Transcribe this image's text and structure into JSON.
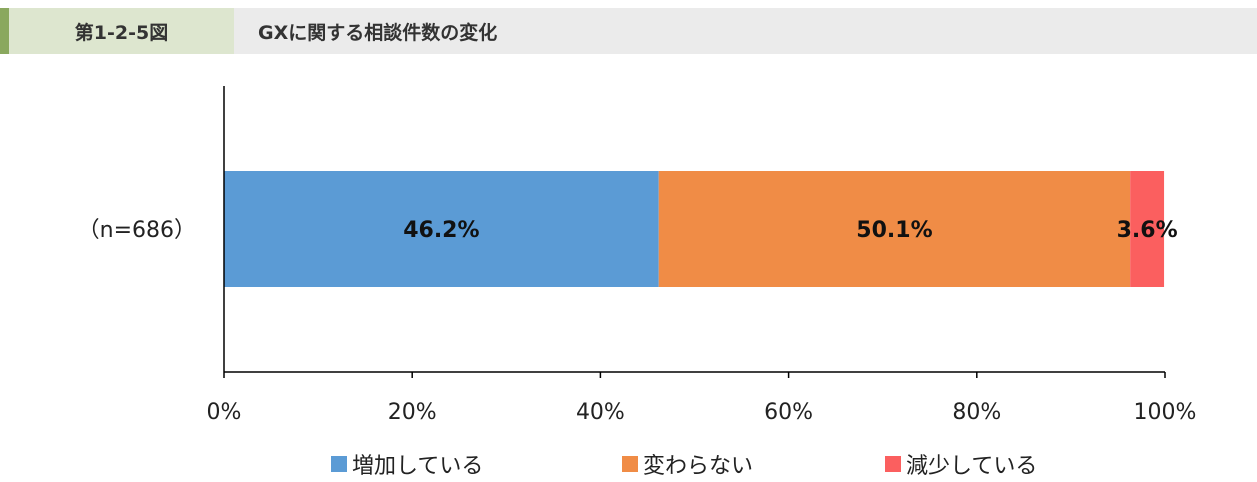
{
  "header": {
    "figure_number": "第1-2-5図",
    "title": "GXに関する相談件数の変化"
  },
  "colors": {
    "header_accent": "#8aa85e",
    "header_num_bg": "#dde6cf",
    "header_title_bg": "#ebebeb",
    "increase": "#5b9bd5",
    "unchanged": "#f08c46",
    "decrease": "#fb5f5f"
  },
  "chart_data": {
    "type": "bar",
    "orientation": "horizontal",
    "stacked": true,
    "categories": [
      "（n=686）"
    ],
    "series": [
      {
        "name": "増加している",
        "values": [
          46.2
        ],
        "label": "46.2%",
        "color": "#5b9bd5"
      },
      {
        "name": "変わらない",
        "values": [
          50.1
        ],
        "label": "50.1%",
        "color": "#f08c46"
      },
      {
        "name": "減少している",
        "values": [
          3.6
        ],
        "label": "3.6%",
        "color": "#fb5f5f"
      }
    ],
    "xlim": [
      0,
      100
    ],
    "xticks": [
      "0%",
      "20%",
      "40%",
      "60%",
      "80%",
      "100%"
    ],
    "grid": false,
    "legend_position": "bottom"
  }
}
